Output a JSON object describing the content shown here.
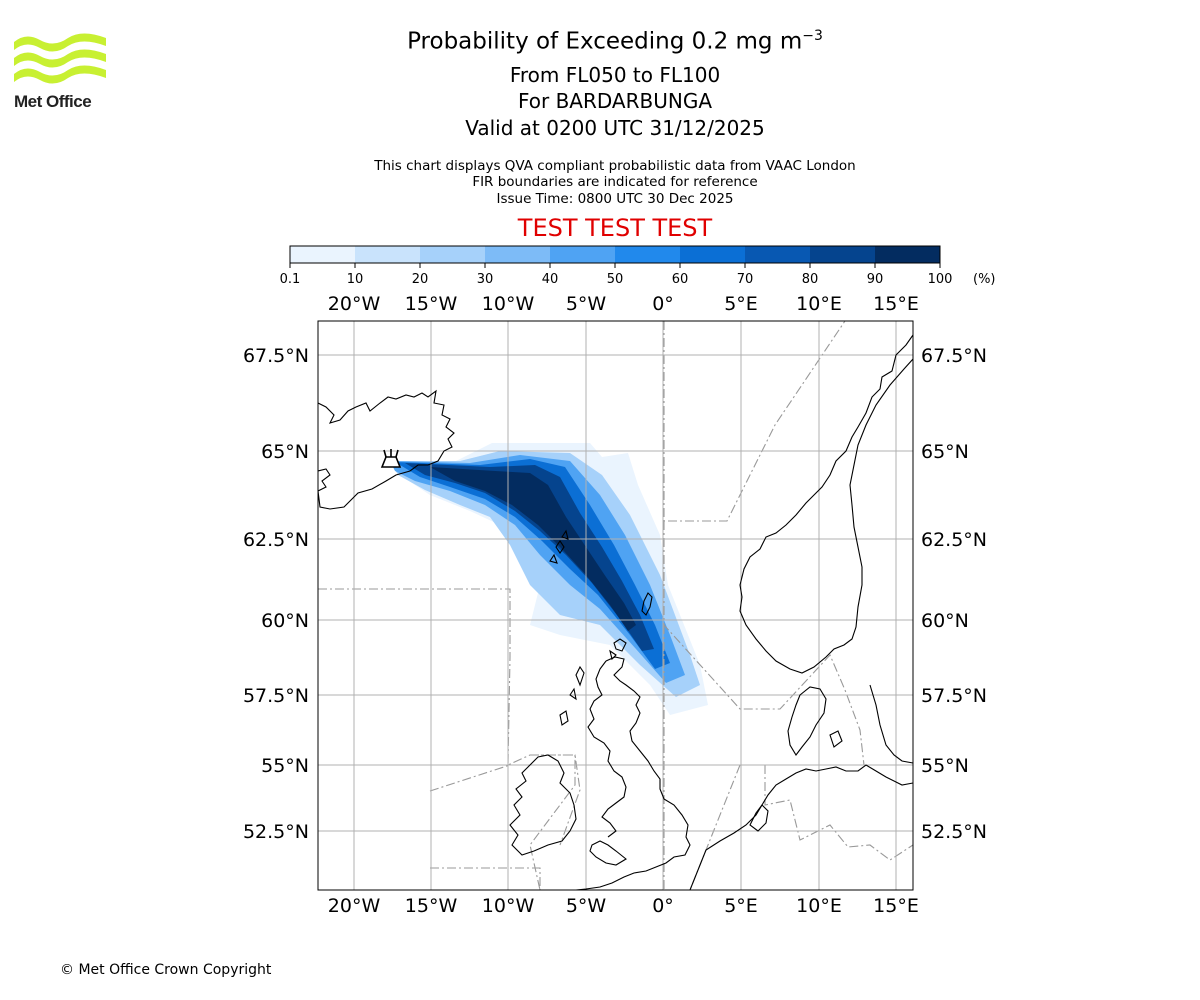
{
  "brand": {
    "name": "Met Office",
    "logo_color": "#c8f032"
  },
  "title": {
    "main": "Probability of Exceeding 0.2 mg m",
    "exponent": "−3",
    "line2": "From FL050 to FL100",
    "line3": "For BARDARBUNGA",
    "line4": "Valid at 0200 UTC 31/12/2025"
  },
  "info": {
    "line1": "This chart displays QVA compliant probabilistic data from VAAC London",
    "line2": "FIR boundaries are indicated for reference",
    "line3": "Issue Time: 0800 UTC 30 Dec 2025"
  },
  "test_banner": "TEST TEST TEST",
  "colorbar": {
    "ticks": [
      "0.1",
      "10",
      "20",
      "30",
      "40",
      "50",
      "60",
      "70",
      "80",
      "90",
      "100"
    ],
    "unit": "(%)",
    "colors": [
      "#eaf4fe",
      "#c9e3fc",
      "#a6d1fa",
      "#7dbbf7",
      "#4fa3f3",
      "#2189ec",
      "#0b6fd5",
      "#0858b2",
      "#05448e",
      "#032c60"
    ]
  },
  "map": {
    "lon_labels": [
      "20°W",
      "15°W",
      "10°W",
      "5°W",
      "0°",
      "5°E",
      "10°E",
      "15°E"
    ],
    "lat_labels": [
      "67.5°N",
      "65°N",
      "62.5°N",
      "60°N",
      "57.5°N",
      "55°N",
      "52.5°N"
    ],
    "volcano": "BARDARBUNGA"
  },
  "footer": {
    "copyright": "© Met Office Crown Copyright"
  }
}
